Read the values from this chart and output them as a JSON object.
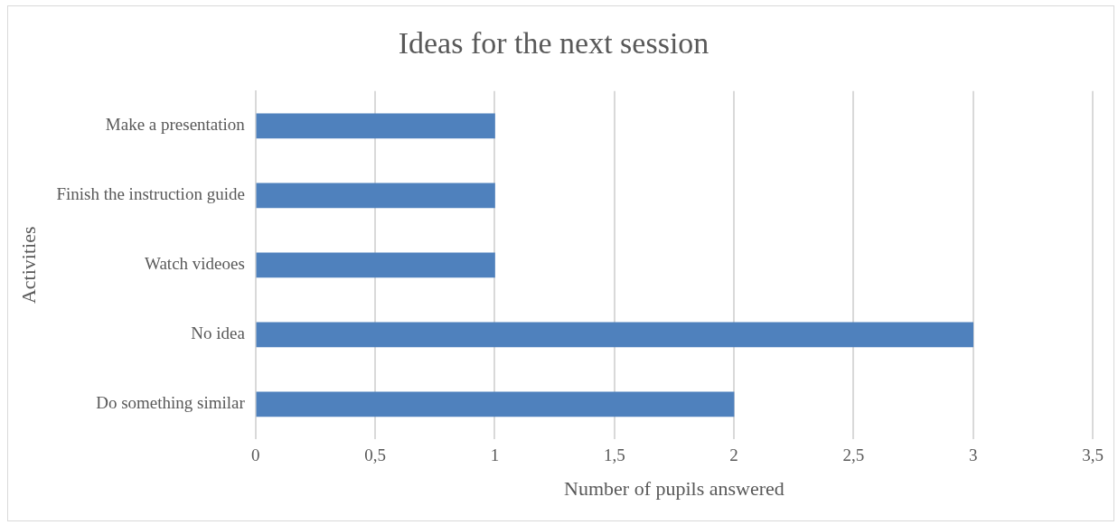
{
  "chart_data": {
    "type": "bar",
    "orientation": "horizontal",
    "title": "Ideas for the next session",
    "xlabel": "Number of pupils answered",
    "ylabel": "Activities",
    "categories": [
      "Make a presentation",
      "Finish the instruction guide",
      "Watch videoes",
      "No idea",
      "Do something similar"
    ],
    "values": [
      1,
      1,
      1,
      3,
      2
    ],
    "color": "#4f81bd",
    "xlim": [
      0,
      3.5
    ],
    "xticks": [
      0,
      {
        "value": 0.5,
        "label": "0,5"
      },
      1,
      {
        "value": 1.5,
        "label": "1,5"
      },
      2,
      {
        "value": 2.5,
        "label": "2,5"
      },
      3,
      {
        "value": 3.5,
        "label": "3,5"
      }
    ],
    "grid": "x",
    "legend": false
  }
}
